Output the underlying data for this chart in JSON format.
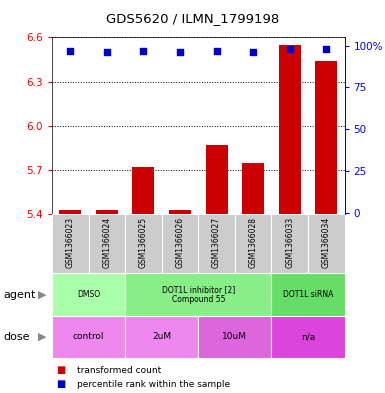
{
  "title": "GDS5620 / ILMN_1799198",
  "samples": [
    "GSM1366023",
    "GSM1366024",
    "GSM1366025",
    "GSM1366026",
    "GSM1366027",
    "GSM1366028",
    "GSM1366033",
    "GSM1366034"
  ],
  "bar_values": [
    5.43,
    5.43,
    5.72,
    5.43,
    5.87,
    5.75,
    6.55,
    6.44
  ],
  "percentile_values": [
    97,
    96,
    97,
    96,
    97,
    96,
    98,
    98
  ],
  "ylim": [
    5.4,
    6.6
  ],
  "yticks_left": [
    5.4,
    5.7,
    6.0,
    6.3,
    6.6
  ],
  "yticks_right": [
    0,
    25,
    50,
    75,
    100
  ],
  "bar_color": "#cc0000",
  "scatter_color": "#0000cc",
  "agent_groups": [
    {
      "label": "DMSO",
      "start": 0,
      "end": 2,
      "color": "#aaffaa"
    },
    {
      "label": "DOT1L inhibitor [2]\nCompound 55",
      "start": 2,
      "end": 6,
      "color": "#88ee88"
    },
    {
      "label": "DOT1L siRNA",
      "start": 6,
      "end": 8,
      "color": "#66dd66"
    }
  ],
  "dose_groups": [
    {
      "label": "control",
      "start": 0,
      "end": 2,
      "color": "#ee88ee"
    },
    {
      "label": "2uM",
      "start": 2,
      "end": 4,
      "color": "#ee88ee"
    },
    {
      "label": "10uM",
      "start": 4,
      "end": 6,
      "color": "#dd66dd"
    },
    {
      "label": "n/a",
      "start": 6,
      "end": 8,
      "color": "#dd44dd"
    }
  ],
  "legend_items": [
    {
      "color": "#cc0000",
      "label": "transformed count"
    },
    {
      "color": "#0000cc",
      "label": "percentile rank within the sample"
    }
  ],
  "gray_bg": "#cccccc"
}
